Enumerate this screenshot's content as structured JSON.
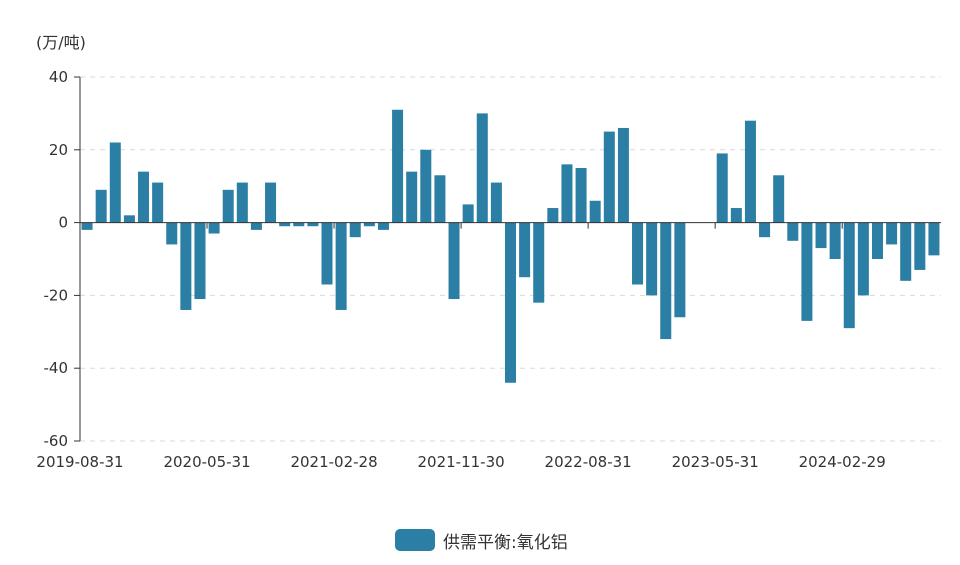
{
  "colors": {
    "bar": "#2b7ea4",
    "grid": "#d9d9d9",
    "axis": "#333333"
  },
  "chart_data": {
    "type": "bar",
    "unit_label": "(万/吨)",
    "ylim": [
      -60,
      40
    ],
    "y_ticks": [
      40,
      20,
      0,
      -20,
      -40,
      -60
    ],
    "y_tick_labels": [
      "40",
      "20",
      "0",
      "-20",
      "-40",
      "-60"
    ],
    "x_tick_labels": [
      "2019-08-31",
      "2020-05-31",
      "2021-02-28",
      "2021-11-30",
      "2022-08-31",
      "2023-05-31",
      "2024-02-29"
    ],
    "grid": "horizontal dashed",
    "legend_position": "bottom-center",
    "series": [
      {
        "name": "供需平衡:氧化铝",
        "values": [
          -2,
          9,
          22,
          2,
          14,
          11,
          -6,
          -24,
          -21,
          -3,
          9,
          11,
          -2,
          11,
          -1,
          -1,
          -1,
          -17,
          -24,
          -4,
          -1,
          -2,
          31,
          14,
          20,
          13,
          -21,
          5,
          30,
          11,
          -44,
          -15,
          -22,
          4,
          16,
          15,
          6,
          25,
          26,
          -17,
          -20,
          -32,
          -26,
          0,
          0,
          19,
          4,
          28,
          -4,
          13,
          -5,
          -27,
          -7,
          -10,
          -29,
          -20,
          -10,
          -6,
          -16,
          -13,
          -9
        ]
      }
    ]
  }
}
